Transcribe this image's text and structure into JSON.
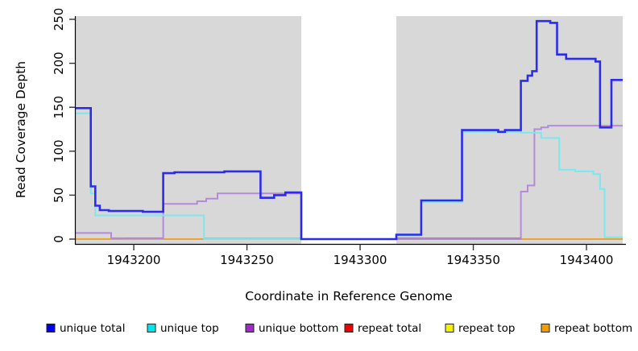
{
  "chart_data": {
    "type": "line",
    "title": "",
    "xlabel": "Coordinate in Reference Genome",
    "ylabel": "Read Coverage Depth",
    "xlim": [
      1943174,
      1943416
    ],
    "ylim": [
      0,
      250
    ],
    "x_ticks": [
      1943200,
      1943250,
      1943300,
      1943350,
      1943400
    ],
    "y_ticks": [
      0,
      50,
      100,
      150,
      200,
      250
    ],
    "grid": false,
    "plot_background": "#d8d8d8",
    "highlight_band": {
      "x_start": 1943274,
      "x_end": 1943316,
      "color": "#ffffff"
    },
    "step_mode": "after",
    "legend_position": "bottom",
    "draw_order": [
      3,
      4,
      5,
      2,
      1,
      0
    ],
    "series": [
      {
        "name": "unique total",
        "legend_color": "#0000ee",
        "line_color": "#2323ee",
        "line_width": 2.6,
        "points": [
          [
            1943174,
            149
          ],
          [
            1943181,
            60
          ],
          [
            1943183,
            38
          ],
          [
            1943185,
            33
          ],
          [
            1943189,
            32
          ],
          [
            1943204,
            31
          ],
          [
            1943213,
            75
          ],
          [
            1943218,
            76
          ],
          [
            1943240,
            77
          ],
          [
            1943256,
            47
          ],
          [
            1943262,
            50
          ],
          [
            1943267,
            53
          ],
          [
            1943274,
            0
          ],
          [
            1943316,
            5
          ],
          [
            1943327,
            44
          ],
          [
            1943345,
            124
          ],
          [
            1943361,
            122
          ],
          [
            1943364,
            124
          ],
          [
            1943371,
            180
          ],
          [
            1943374,
            186
          ],
          [
            1943376,
            191
          ],
          [
            1943378,
            248
          ],
          [
            1943384,
            246
          ],
          [
            1943387,
            210
          ],
          [
            1943391,
            205
          ],
          [
            1943404,
            202
          ],
          [
            1943406,
            127
          ],
          [
            1943411,
            181
          ]
        ]
      },
      {
        "name": "unique top",
        "legend_color": "#00e6ee",
        "line_color": "#76e9ef",
        "line_width": 2.0,
        "points": [
          [
            1943174,
            143
          ],
          [
            1943181,
            52
          ],
          [
            1943183,
            27
          ],
          [
            1943231,
            0
          ],
          [
            1943274,
            0
          ],
          [
            1943316,
            4
          ],
          [
            1943327,
            42
          ],
          [
            1943345,
            122
          ],
          [
            1943371,
            121
          ],
          [
            1943380,
            115
          ],
          [
            1943388,
            79
          ],
          [
            1943395,
            77
          ],
          [
            1943403,
            74
          ],
          [
            1943406,
            57
          ],
          [
            1943408,
            2
          ]
        ]
      },
      {
        "name": "unique bottom",
        "legend_color": "#a12bc8",
        "line_color": "#b286da",
        "line_width": 2.0,
        "points": [
          [
            1943174,
            7
          ],
          [
            1943190,
            1
          ],
          [
            1943213,
            40
          ],
          [
            1943228,
            43
          ],
          [
            1943232,
            46
          ],
          [
            1943237,
            52
          ],
          [
            1943274,
            0
          ],
          [
            1943371,
            54
          ],
          [
            1943374,
            61
          ],
          [
            1943377,
            125
          ],
          [
            1943380,
            127
          ],
          [
            1943383,
            129
          ]
        ]
      },
      {
        "name": "repeat total",
        "legend_color": "#ee0000",
        "line_color": "#e05f7d",
        "line_width": 1.8,
        "points": [
          [
            1943174,
            0
          ],
          [
            1943197,
            1
          ],
          [
            1943213,
            0
          ],
          [
            1943316,
            1
          ],
          [
            1943371,
            0
          ]
        ]
      },
      {
        "name": "repeat top",
        "legend_color": "#f2f200",
        "line_color": "#97d18c",
        "line_width": 1.8,
        "points": [
          [
            1943174,
            0
          ],
          [
            1943231,
            1
          ],
          [
            1943274,
            0
          ]
        ]
      },
      {
        "name": "repeat bottom",
        "legend_color": "#f0a000",
        "line_color": "#ff9e1a",
        "line_width": 1.8,
        "points": [
          [
            1943174,
            0
          ]
        ]
      }
    ]
  }
}
